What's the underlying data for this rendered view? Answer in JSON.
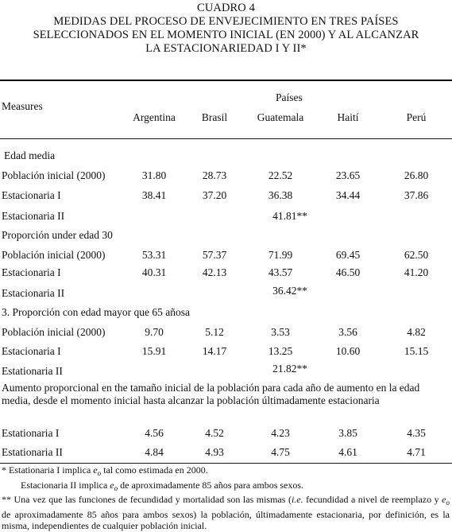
{
  "title": {
    "line1": "CUADRO 4",
    "line2": "MEDIDAS DEL PROCESO DE ENVEJECIMIENTO  EN TRES PAÍSES",
    "line3": "SELECCIONADOS EN EL MOMENTO INICIAL (EN 2000)  Y AL ALCANZAR",
    "line4": "LA ESTACIONARIEDAD  I Y II*"
  },
  "header": {
    "measures": "Measures",
    "paises": "Países",
    "countries": [
      "Argentina",
      "Brasil",
      "Guatemala",
      "Haití",
      "Perú"
    ]
  },
  "sections": [
    {
      "heading": "Edad media",
      "rows": [
        {
          "label": "Población inicial (2000)",
          "values": [
            "31.80",
            "28.73",
            "22.52",
            "23.65",
            "26.80"
          ]
        },
        {
          "label": "Estacionaria I",
          "values": [
            "38.41",
            "37.20",
            "36.38",
            "34.44",
            "37.86"
          ]
        }
      ],
      "stationary_label": "Estacionaria II",
      "stationary_value": "41.81**"
    },
    {
      "heading": "Proporción under edad 30",
      "rows": [
        {
          "label": "Población inicial (2000)",
          "values": [
            "53.31",
            "57.37",
            "71.99",
            "69.45",
            "62.50"
          ]
        },
        {
          "label": "Estacionaria I",
          "values": [
            "40.31",
            "42.13",
            "43.57",
            "46.50",
            "41.20"
          ]
        }
      ],
      "stationary_label": "Estacionaria II",
      "stationary_value": "36.42**"
    },
    {
      "heading": "3. Proporción con edad mayor que 65 añosa",
      "rows": [
        {
          "label": "Población inicial  (2000)",
          "values": [
            "9.70",
            "5.12",
            "3.53",
            "3.56",
            "4.82"
          ]
        },
        {
          "label": "Estacionaria I",
          "values": [
            "15.91",
            "14.17",
            "13.25",
            "10.60",
            "15.15"
          ]
        }
      ],
      "stationary_label": "Estationaria  II",
      "stationary_value": "21.82**"
    }
  ],
  "last_section": {
    "heading": "Aumento proporcional en the tamaño inicial de la población para cada año de aumento en la edad media, desde el momento inicial  hasta alcanzar la población últimadamente estacionaria",
    "rows": [
      {
        "label": "Estationaria   I",
        "values": [
          "4.56",
          "4.52",
          "4.23",
          "3.85",
          "4.35"
        ]
      },
      {
        "label": "Estationaria  II",
        "values": [
          "4.84",
          "4.93",
          "4.75",
          "4.61",
          "4.71"
        ]
      }
    ]
  },
  "notes": {
    "n1_a": "* Estationaria I implica ",
    "n1_e": "e",
    "n1_sub": "o",
    "n1_b": " tal como estimada en 2000.",
    "n2_a": "Estacionaria II implica ",
    "n2_e": "e",
    "n2_sub": "o",
    "n2_b": " de  aproximadamente 85 años para ambos sexos.",
    "n3_a": "** Una vez que las funciones de fecundidad y mortalidad son las mismas (",
    "n3_ie": "i.e.",
    "n3_b": " fecundidad a nivel de reemplazo y ",
    "n3_e": "e",
    "n3_sub": "o",
    "n3_c": " de aproximadamente 85 años para ambos sexos) la población, últimadamente estacionaria,  por definición, es la misma, independientes de cualquier población inicial."
  }
}
